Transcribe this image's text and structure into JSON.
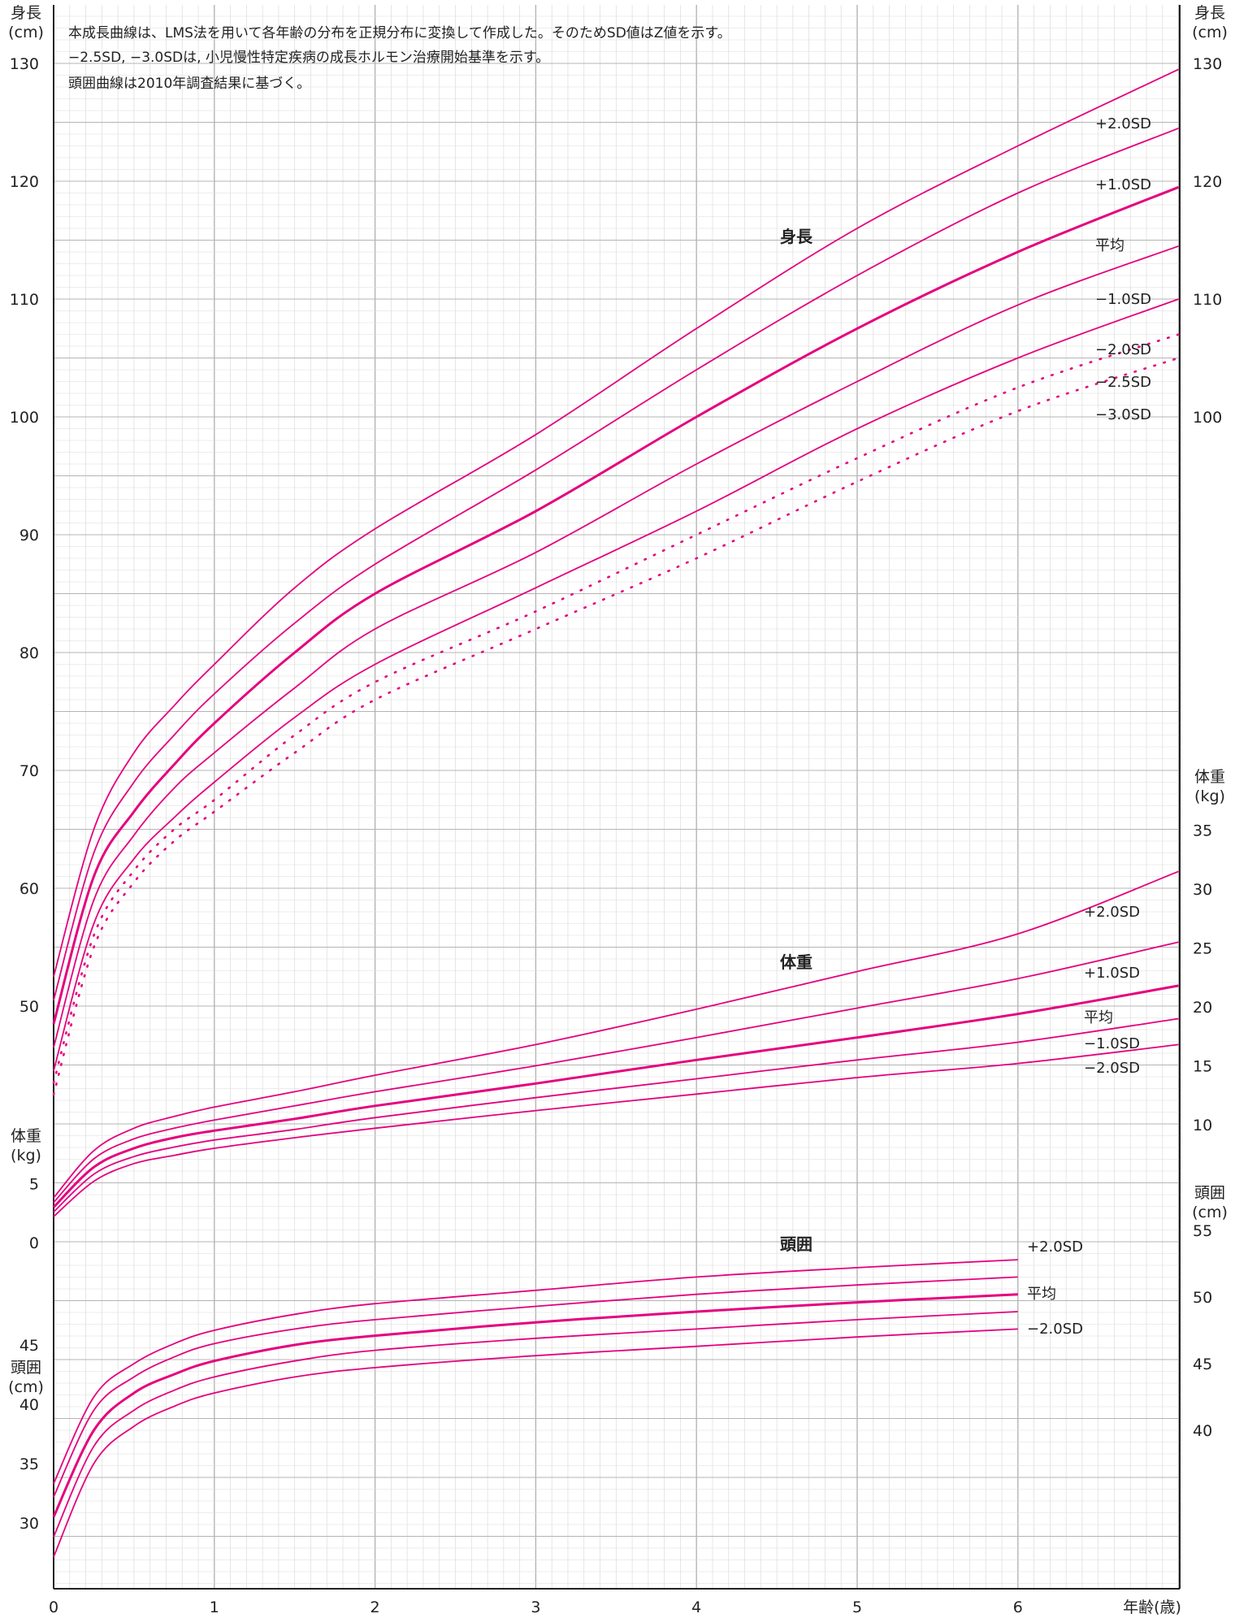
{
  "notes": [
    "本成長曲線は、LMS法を用いて各年齢の分布を正規分布に変換して作成した。そのためSD値はZ値を示す。",
    "−2.5SD, −3.0SDは, 小児慢性特定疾病の成長ホルモン治療開始基準を示す。",
    "頭囲曲線は2010年調査結果に基づく。"
  ],
  "axis_titles": {
    "height_left": [
      "身長",
      "(cm)"
    ],
    "height_right": [
      "身長",
      "(cm)"
    ],
    "weight_left": [
      "体重",
      "(kg)"
    ],
    "weight_right": [
      "体重",
      "(kg)"
    ],
    "head_left": [
      "頭囲",
      "(cm)"
    ],
    "head_right": [
      "頭囲",
      "(cm)"
    ],
    "x": "年齢(歳)"
  },
  "section_labels": {
    "height": "身長",
    "weight": "体重",
    "head": "頭囲"
  },
  "colors": {
    "curve": "#e5007e",
    "grid_major": "#b4b4b4",
    "grid_minor": "#dcdcdc",
    "axis": "#222222"
  },
  "chart_data": {
    "type": "line",
    "x_ticks": [
      0,
      1,
      2,
      3,
      4,
      5,
      6
    ],
    "xlim": [
      0,
      7
    ],
    "height_axis": {
      "left_ticks": [
        30,
        35,
        40,
        45,
        50,
        60,
        70,
        80,
        90,
        100,
        110,
        120,
        130
      ],
      "right_ticks": [
        100,
        110,
        120,
        130
      ]
    },
    "weight_axis": {
      "left_ticks": [
        0,
        5
      ],
      "right_ticks": [
        10,
        15,
        20,
        25,
        30,
        35
      ]
    },
    "head_axis": {
      "right_ticks": [
        40,
        45,
        50,
        55
      ]
    },
    "height": {
      "x": [
        0,
        0.25,
        0.5,
        0.75,
        1,
        1.5,
        2,
        3,
        4,
        5,
        6,
        7
      ],
      "series": [
        {
          "name": "+2.0SD",
          "style": "solid",
          "values": [
            52.5,
            65.0,
            71.5,
            75.5,
            79.0,
            85.5,
            90.5,
            98.5,
            107.5,
            116.0,
            123.0,
            129.5
          ]
        },
        {
          "name": "+1.0SD",
          "style": "solid",
          "values": [
            50.5,
            63.0,
            69.0,
            73.0,
            76.5,
            82.5,
            87.5,
            95.5,
            104.0,
            112.0,
            119.0,
            124.5
          ]
        },
        {
          "name": "平均",
          "style": "bold",
          "values": [
            48.5,
            61.0,
            66.5,
            70.5,
            74.0,
            80.0,
            85.0,
            92.0,
            100.0,
            107.5,
            114.0,
            119.5
          ]
        },
        {
          "name": "−1.0SD",
          "style": "solid",
          "values": [
            46.5,
            59.0,
            64.5,
            68.5,
            71.5,
            77.0,
            82.0,
            88.5,
            96.0,
            103.0,
            109.5,
            114.5
          ]
        },
        {
          "name": "−2.0SD",
          "style": "solid",
          "values": [
            44.5,
            57.0,
            62.5,
            66.0,
            69.0,
            74.5,
            79.0,
            85.5,
            92.0,
            99.0,
            105.0,
            110.0
          ]
        },
        {
          "name": "−2.5SD",
          "style": "dotted",
          "values": [
            43.5,
            56.0,
            61.5,
            65.0,
            67.5,
            73.0,
            77.5,
            83.5,
            90.0,
            96.5,
            102.5,
            107.0
          ]
        },
        {
          "name": "−3.0SD",
          "style": "dotted",
          "values": [
            42.5,
            55.0,
            60.5,
            64.0,
            66.5,
            71.5,
            76.0,
            82.0,
            88.0,
            94.5,
            100.5,
            105.0
          ]
        }
      ]
    },
    "weight": {
      "x": [
        0,
        0.25,
        0.5,
        0.75,
        1,
        1.5,
        2,
        3,
        4,
        5,
        6,
        7
      ],
      "series": [
        {
          "name": "+2.0SD",
          "style": "solid",
          "values": [
            3.8,
            7.8,
            9.7,
            10.7,
            11.5,
            12.8,
            14.2,
            16.8,
            19.8,
            23.0,
            26.2,
            31.5
          ]
        },
        {
          "name": "+1.0SD",
          "style": "solid",
          "values": [
            3.4,
            7.1,
            8.8,
            9.7,
            10.4,
            11.6,
            12.8,
            15.0,
            17.4,
            19.9,
            22.4,
            25.5
          ]
        },
        {
          "name": "平均",
          "style": "bold",
          "values": [
            3.0,
            6.4,
            8.0,
            8.9,
            9.5,
            10.5,
            11.6,
            13.5,
            15.5,
            17.4,
            19.4,
            21.8
          ]
        },
        {
          "name": "−1.0SD",
          "style": "solid",
          "values": [
            2.6,
            5.8,
            7.3,
            8.1,
            8.7,
            9.6,
            10.6,
            12.3,
            13.9,
            15.5,
            17.0,
            19.0
          ]
        },
        {
          "name": "−2.0SD",
          "style": "solid",
          "values": [
            2.2,
            5.2,
            6.7,
            7.4,
            8.0,
            8.9,
            9.7,
            11.2,
            12.6,
            14.0,
            15.2,
            16.8
          ]
        }
      ]
    },
    "head": {
      "x": [
        0,
        0.25,
        0.5,
        0.75,
        1,
        1.5,
        2,
        3,
        4,
        5,
        6
      ],
      "series": [
        {
          "name": "+2.0SD",
          "style": "solid",
          "values": [
            36.0,
            42.5,
            45.0,
            46.5,
            47.5,
            48.7,
            49.5,
            50.5,
            51.5,
            52.2,
            52.8
          ]
        },
        {
          "name": "+1.0SD",
          "style": "solid",
          "values": [
            35.0,
            41.5,
            44.0,
            45.5,
            46.5,
            47.6,
            48.3,
            49.3,
            50.2,
            50.9,
            51.5
          ]
        },
        {
          "name": "平均",
          "style": "bold",
          "values": [
            33.5,
            40.0,
            42.8,
            44.2,
            45.2,
            46.4,
            47.1,
            48.1,
            48.9,
            49.6,
            50.2
          ]
        },
        {
          "name": "−1.0SD",
          "style": "solid",
          "values": [
            32.0,
            38.8,
            41.5,
            43.0,
            44.0,
            45.2,
            46.0,
            46.9,
            47.6,
            48.3,
            48.9
          ]
        },
        {
          "name": "−2.0SD",
          "style": "solid",
          "values": [
            30.5,
            37.5,
            40.3,
            41.8,
            42.8,
            44.0,
            44.7,
            45.6,
            46.3,
            47.0,
            47.6
          ]
        }
      ]
    }
  }
}
